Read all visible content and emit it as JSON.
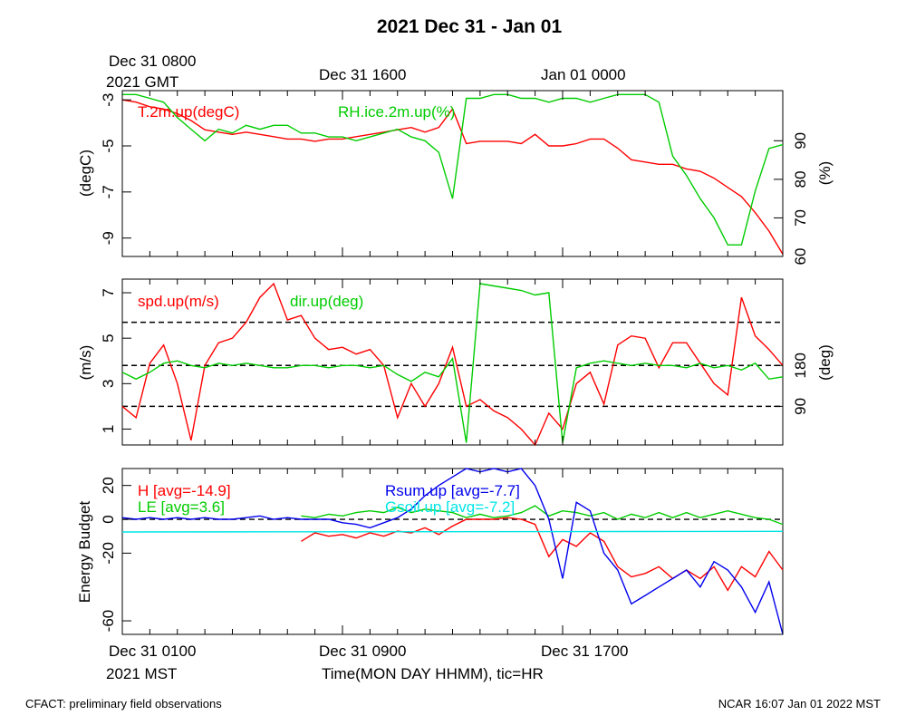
{
  "title": "2021 Dec 31 - Jan 01",
  "top_time_labels": {
    "first_line1": "Dec 31 0800",
    "first_line2": "2021 GMT",
    "second": "Dec 31 1600",
    "third": "Jan 01 0000"
  },
  "bottom_time_labels": {
    "first_line1": "Dec 31 0100",
    "first_line2": "2021 MST",
    "second": "Dec 31 0900",
    "third": "Dec 31 1700"
  },
  "xlabel": "Time(MON DAY HHMM), tic=HR",
  "footer": {
    "left": "CFACT: preliminary field observations",
    "right": "NCAR 16:07 Jan 01 2022 MST"
  },
  "colors": {
    "red": "#ff0000",
    "green": "#00cc00",
    "blue": "#0000ee",
    "cyan": "#00e5e5"
  },
  "chart_data": [
    {
      "type": "line",
      "panel": "temperature_rh",
      "x_unit": "hours since Dec 31 0100 MST",
      "xlim": [
        0,
        24
      ],
      "ylabel_left": "(degC)",
      "ylim_left": [
        -9.8,
        -2.6
      ],
      "yticks_left": [
        -3,
        -5,
        -7,
        -9
      ],
      "ylabel_right": "(%)",
      "ylim_right": [
        60,
        103
      ],
      "yticks_right": [
        60,
        70,
        80,
        90
      ],
      "series": [
        {
          "name": "T.2m.up(degC)",
          "axis": "left",
          "color": "red",
          "x": [
            0,
            0.5,
            1,
            1.5,
            2,
            2.5,
            3,
            3.5,
            4,
            4.5,
            5,
            5.5,
            6,
            6.5,
            7,
            7.5,
            8,
            8.5,
            9,
            9.5,
            10,
            10.5,
            11,
            11.5,
            12,
            12.5,
            13,
            13.5,
            14,
            14.5,
            15,
            15.5,
            16,
            16.5,
            17,
            17.5,
            18,
            18.5,
            19,
            19.5,
            20,
            20.5,
            21,
            21.5,
            22,
            22.5,
            23,
            23.5,
            24
          ],
          "y": [
            -3.0,
            -3.1,
            -3.3,
            -3.4,
            -3.6,
            -3.9,
            -4.3,
            -4.4,
            -4.5,
            -4.4,
            -4.5,
            -4.6,
            -4.7,
            -4.7,
            -4.8,
            -4.7,
            -4.7,
            -4.6,
            -4.5,
            -4.4,
            -4.3,
            -4.2,
            -4.4,
            -4.2,
            -3.4,
            -4.9,
            -4.8,
            -4.8,
            -4.8,
            -4.9,
            -4.5,
            -5.0,
            -5.0,
            -4.9,
            -4.7,
            -4.7,
            -5.1,
            -5.6,
            -5.7,
            -5.8,
            -5.8,
            -6.0,
            -6.1,
            -6.4,
            -6.8,
            -7.2,
            -7.9,
            -8.7,
            -9.7
          ]
        },
        {
          "name": "RH.ice.2m.up(%)",
          "axis": "right",
          "color": "green",
          "x": [
            0,
            0.5,
            1,
            1.5,
            2,
            2.5,
            3,
            3.5,
            4,
            4.5,
            5,
            5.5,
            6,
            6.5,
            7,
            7.5,
            8,
            8.5,
            9,
            9.5,
            10,
            10.5,
            11,
            11.5,
            12,
            12.5,
            13,
            13.5,
            14,
            14.5,
            15,
            15.5,
            16,
            16.5,
            17,
            17.5,
            18,
            18.5,
            19,
            19.5,
            20,
            20.5,
            21,
            21.5,
            22,
            22.5,
            23,
            23.5,
            24
          ],
          "y": [
            102,
            102,
            101,
            100,
            96,
            93,
            90,
            93,
            92,
            94,
            93,
            94,
            94,
            92,
            92,
            91,
            91,
            90,
            91,
            92,
            93,
            91,
            90,
            87,
            75,
            101,
            101,
            102,
            102,
            101,
            101,
            100,
            101,
            101,
            100,
            101,
            102,
            102,
            102,
            100,
            86,
            81,
            75,
            70,
            63,
            63,
            77,
            88,
            89
          ]
        }
      ]
    },
    {
      "type": "line",
      "panel": "wind",
      "x_unit": "hours since Dec 31 0100 MST",
      "xlim": [
        0,
        24
      ],
      "ylabel_left": "(m/s)",
      "ylim_left": [
        0.3,
        7.6
      ],
      "yticks_left": [
        1,
        3,
        5,
        7
      ],
      "ylabel_right": "(deg)",
      "yticks_right": [
        90,
        180
      ],
      "reference_lines_left": [
        2.0,
        3.8,
        5.7
      ],
      "series": [
        {
          "name": "spd.up(m/s)",
          "axis": "left",
          "color": "red",
          "x": [
            0,
            0.5,
            1,
            1.5,
            2,
            2.5,
            3,
            3.5,
            4,
            4.5,
            5,
            5.5,
            6,
            6.5,
            7,
            7.5,
            8,
            8.5,
            9,
            9.5,
            10,
            10.5,
            11,
            11.5,
            12,
            12.5,
            13,
            13.5,
            14,
            14.5,
            15,
            15.5,
            16,
            16.5,
            17,
            17.5,
            18,
            18.5,
            19,
            19.5,
            20,
            20.5,
            21,
            21.5,
            22,
            22.5,
            23,
            23.5,
            24
          ],
          "y": [
            2.0,
            1.5,
            3.9,
            4.7,
            3.0,
            0.5,
            3.8,
            4.8,
            5.0,
            5.7,
            6.8,
            7.4,
            5.8,
            6.0,
            5.0,
            4.5,
            4.6,
            4.3,
            4.5,
            3.8,
            1.5,
            3.0,
            2.0,
            3.0,
            4.6,
            2.0,
            2.3,
            1.8,
            1.5,
            1.0,
            0.3,
            1.7,
            1.0,
            3.0,
            3.5,
            2.1,
            4.7,
            5.1,
            5.0,
            3.7,
            4.8,
            4.8,
            3.9,
            3.0,
            2.5,
            6.8,
            5.1,
            4.5,
            3.8
          ]
        },
        {
          "name": "dir.up(deg)",
          "axis": "left",
          "color": "green",
          "x": [
            0,
            0.5,
            1,
            1.5,
            2,
            2.5,
            3,
            3.5,
            4,
            4.5,
            5,
            5.5,
            6,
            6.5,
            7,
            7.5,
            8,
            8.5,
            9,
            9.5,
            10,
            10.5,
            11,
            11.5,
            12,
            12.5,
            13,
            13.5,
            14,
            14.5,
            15,
            15.5,
            16,
            16.5,
            17,
            17.5,
            18,
            18.5,
            19,
            19.5,
            20,
            20.5,
            21,
            21.5,
            22,
            22.5,
            23,
            23.5,
            24
          ],
          "y": [
            3.5,
            3.2,
            3.5,
            3.9,
            4.0,
            3.8,
            3.7,
            3.9,
            3.8,
            3.9,
            3.8,
            3.7,
            3.7,
            3.8,
            3.8,
            3.7,
            3.8,
            3.8,
            3.7,
            3.8,
            3.4,
            3.1,
            3.5,
            3.3,
            4.1,
            0.4,
            7.4,
            7.3,
            7.2,
            7.1,
            6.9,
            7.0,
            0.4,
            3.7,
            3.9,
            4.0,
            3.9,
            3.8,
            3.9,
            3.8,
            3.8,
            3.7,
            3.9,
            3.7,
            3.8,
            3.6,
            3.9,
            3.2,
            3.3
          ]
        }
      ]
    },
    {
      "type": "line",
      "panel": "energy_budget",
      "x_unit": "hours since Dec 31 0100 MST",
      "xlim": [
        0,
        24
      ],
      "ylabel": "Energy Budget",
      "ylim": [
        -68,
        30
      ],
      "yticks": [
        20,
        0,
        -20,
        -60
      ],
      "reference_lines": [
        0
      ],
      "series": [
        {
          "name": "H",
          "avg_label": "[avg=-14.9]",
          "color": "red",
          "x": [
            6.5,
            7,
            7.5,
            8,
            8.5,
            9,
            9.5,
            10,
            10.5,
            11,
            11.5,
            12,
            12.5,
            13,
            13.5,
            14,
            14.5,
            15,
            15.5,
            16,
            16.5,
            17,
            17.5,
            18,
            18.5,
            19,
            19.5,
            20,
            20.5,
            21,
            21.5,
            22,
            22.5,
            23,
            23.5,
            24
          ],
          "y": [
            -13,
            -8,
            -10,
            -9,
            -11,
            -8,
            -10,
            -7,
            -8,
            -5,
            -9,
            -4,
            0,
            0,
            0,
            1,
            0,
            -3,
            -22,
            -12,
            -16,
            -8,
            -13,
            -28,
            -34,
            -32,
            -28,
            -35,
            -30,
            -35,
            -28,
            -42,
            -28,
            -34,
            -19,
            -30
          ]
        },
        {
          "name": "LE",
          "avg_label": "[avg=3.6]",
          "color": "green",
          "x": [
            6.5,
            7,
            7.5,
            8,
            8.5,
            9,
            9.5,
            10,
            10.5,
            11,
            11.5,
            12,
            12.5,
            13,
            13.5,
            14,
            14.5,
            15,
            15.5,
            16,
            16.5,
            17,
            17.5,
            18,
            18.5,
            19,
            19.5,
            20,
            20.5,
            21,
            21.5,
            22,
            22.5,
            23,
            23.5,
            24
          ],
          "y": [
            2,
            1,
            3,
            2,
            4,
            5,
            4,
            7,
            4,
            6,
            5,
            4,
            1,
            3,
            1,
            2,
            4,
            8,
            2,
            5,
            4,
            2,
            4,
            0,
            3,
            1,
            4,
            1,
            4,
            1,
            3,
            5,
            3,
            1,
            0,
            -3
          ]
        },
        {
          "name": "Rsum.up",
          "avg_label": "[avg=-7.7]",
          "color": "blue",
          "x": [
            0,
            0.5,
            1,
            1.5,
            2,
            2.5,
            3,
            3.5,
            4,
            4.5,
            5,
            5.5,
            6,
            6.5,
            7,
            7.5,
            8,
            8.5,
            9,
            9.5,
            10,
            10.5,
            11,
            11.5,
            12,
            12.5,
            13,
            13.5,
            14,
            14.5,
            15,
            15.5,
            16,
            16.5,
            17,
            17.5,
            18,
            18.5,
            19,
            19.5,
            20,
            20.5,
            21,
            21.5,
            22,
            22.5,
            23,
            23.5,
            24
          ],
          "y": [
            1,
            0,
            1,
            0,
            1,
            0,
            1,
            0,
            0,
            1,
            2,
            0,
            1,
            0,
            0,
            0,
            -2,
            -3,
            -5,
            -2,
            1,
            6,
            14,
            20,
            25,
            30,
            28,
            30,
            28,
            30,
            20,
            0,
            -35,
            10,
            5,
            -20,
            -30,
            -50,
            -45,
            -40,
            -35,
            -30,
            -40,
            -25,
            -30,
            -40,
            -55,
            -37,
            -68
          ]
        },
        {
          "name": "Gsoil.up",
          "avg_label": "[avg=-7.2]",
          "color": "cyan",
          "x": [
            0,
            6,
            12,
            18,
            24
          ],
          "y": [
            -7.5,
            -7.4,
            -7.3,
            -7.2,
            -7.1
          ]
        }
      ]
    }
  ]
}
